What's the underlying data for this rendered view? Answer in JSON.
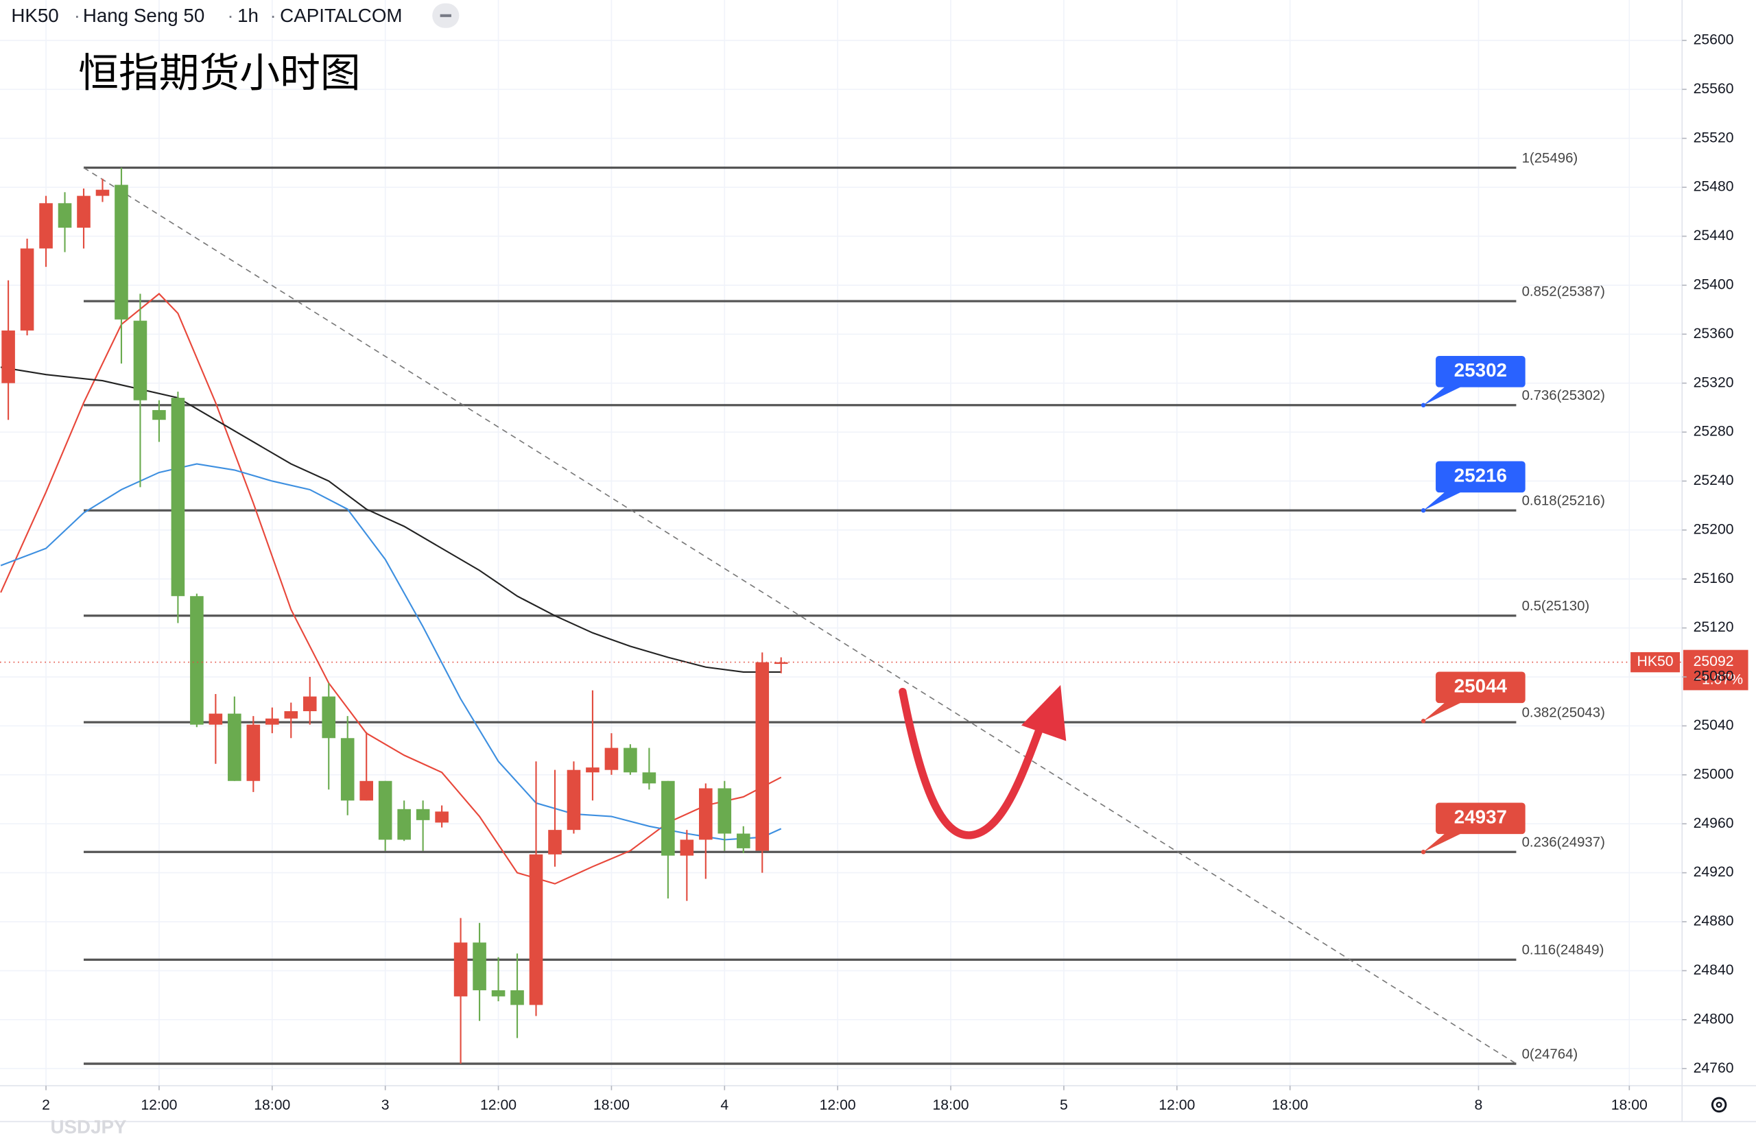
{
  "header": {
    "symbol": "HK50",
    "name": "Hang Seng 50",
    "interval": "1h",
    "source": "CAPITALCOM"
  },
  "watermark": "USDJPY",
  "chart_data": {
    "type": "candlestick",
    "title": "恒指期货小时图",
    "xlim": [
      -2.44,
      86.8
    ],
    "ylim": [
      24746,
      25633
    ],
    "grid": true,
    "xticks": [
      {
        "value": 0,
        "label": "2"
      },
      {
        "value": 6,
        "label": "12:00"
      },
      {
        "value": 12,
        "label": "18:00"
      },
      {
        "value": 18,
        "label": "3"
      },
      {
        "value": 24,
        "label": "12:00"
      },
      {
        "value": 30,
        "label": "18:00"
      },
      {
        "value": 36,
        "label": "4"
      },
      {
        "value": 42,
        "label": "12:00"
      },
      {
        "value": 48,
        "label": "18:00"
      },
      {
        "value": 54,
        "label": "5"
      },
      {
        "value": 60,
        "label": "12:00"
      },
      {
        "value": 66,
        "label": "18:00"
      },
      {
        "value": 76,
        "label": "8"
      },
      {
        "value": 84,
        "label": "18:00"
      }
    ],
    "yticks": [
      24760,
      24800,
      24840,
      24880,
      24920,
      24960,
      25000,
      25040,
      25080,
      25120,
      25160,
      25200,
      25240,
      25280,
      25320,
      25360,
      25400,
      25440,
      25480,
      25520,
      25560,
      25600
    ],
    "up_color": "#e24c3f",
    "down_color": "#6aab4f",
    "candles": {
      "x": [
        -2,
        -1,
        0,
        1,
        2,
        3,
        4,
        5,
        6,
        7,
        8,
        9,
        10,
        11,
        12,
        13,
        14,
        15,
        16,
        17,
        18,
        19,
        20,
        21,
        22,
        23,
        24,
        25,
        26,
        27,
        28,
        29,
        30,
        31,
        32,
        33,
        34,
        35,
        36,
        37,
        38,
        39
      ],
      "open": [
        25320,
        25363,
        25430,
        25467,
        25447,
        25473,
        25482,
        25371,
        25298,
        25308,
        25146,
        25041,
        25050,
        24995,
        25041,
        25046,
        25052,
        25064,
        25030,
        24979,
        24995,
        24972,
        24972,
        24961,
        24819,
        24863,
        24824,
        24824,
        24812,
        24935,
        24955,
        25002,
        25004,
        25022,
        25002,
        24995,
        24934,
        24947,
        24989,
        24952,
        24938,
        25092
      ],
      "high": [
        25404,
        25438,
        25473,
        25476,
        25479,
        25487,
        25496,
        25393,
        25306,
        25313,
        25148,
        25066,
        25064,
        25048,
        25055,
        25059,
        25080,
        25075,
        25048,
        25035,
        24995,
        24979,
        24979,
        24975,
        24883,
        24879,
        24851,
        24854,
        25011,
        25004,
        25011,
        25069,
        25034,
        25025,
        25022,
        24995,
        24955,
        24993,
        24995,
        24958,
        25100,
        25096
      ],
      "low": [
        25290,
        25359,
        25415,
        25427,
        25430,
        25468,
        25336,
        25235,
        25272,
        25124,
        25039,
        25009,
        24995,
        24986,
        25034,
        25030,
        25041,
        24988,
        24967,
        24979,
        24938,
        24946,
        24938,
        24957,
        24764,
        24799,
        24815,
        24785,
        24803,
        24925,
        24952,
        24979,
        25000,
        25000,
        24988,
        24899,
        24897,
        24915,
        24938,
        24936,
        24920,
        25083
      ],
      "close": [
        25363,
        25430,
        25467,
        25447,
        25473,
        25478,
        25372,
        25306,
        25290,
        25146,
        25041,
        25050,
        24995,
        25041,
        25046,
        25052,
        25064,
        25030,
        24979,
        24995,
        24947,
        24947,
        24963,
        24970,
        24863,
        24824,
        24819,
        24812,
        24935,
        24955,
        25004,
        25006,
        25022,
        25002,
        24993,
        24934,
        24947,
        24989,
        24952,
        24940,
        25092,
        25092
      ]
    },
    "lines": [
      {
        "color": "#e8473a",
        "x": [
          -2.4,
          0,
          2,
          4,
          6,
          7,
          9,
          11,
          13,
          15,
          17,
          19,
          21,
          23,
          25,
          27,
          29,
          31,
          33,
          35,
          37,
          39
        ],
        "values": [
          25149,
          25231,
          25304,
          25368,
          25393,
          25377,
          25304,
          25222,
          25135,
          25075,
          25034,
          25016,
          25002,
          24966,
          24920,
          24911,
          24925,
          24938,
          24961,
          24975,
          24982,
          24998
        ]
      },
      {
        "color": "#3d8fe0",
        "x": [
          -2.4,
          0,
          2,
          4,
          6,
          8,
          10,
          12,
          14,
          16,
          18,
          20,
          22,
          24,
          26,
          28,
          30,
          32,
          34,
          36,
          38,
          39
        ],
        "values": [
          25171,
          25185,
          25214,
          25233,
          25247,
          25254,
          25249,
          25240,
          25233,
          25217,
          25176,
          25121,
          25062,
          25011,
          24977,
          24968,
          24966,
          24958,
          24952,
          24947,
          24949,
          24956
        ]
      },
      {
        "color": "#222222",
        "x": [
          -2.4,
          0,
          3,
          5,
          7,
          9,
          11,
          13,
          15,
          17,
          19,
          21,
          23,
          25,
          27,
          29,
          31,
          33,
          35,
          37,
          39
        ],
        "values": [
          25333,
          25327,
          25322,
          25315,
          25308,
          25290,
          25272,
          25254,
          25240,
          25217,
          25203,
          25185,
          25167,
          25146,
          25130,
          25116,
          25105,
          25096,
          25088,
          25084,
          25084
        ]
      }
    ],
    "fib_x": [
      2,
      78
    ],
    "fib_levels": [
      {
        "value": 25496,
        "label": "1(25496)"
      },
      {
        "value": 25387,
        "label": "0.852(25387)"
      },
      {
        "value": 25302,
        "label": "0.736(25302)"
      },
      {
        "value": 25216,
        "label": "0.618(25216)"
      },
      {
        "value": 25130,
        "label": "0.5(25130)"
      },
      {
        "value": 25043,
        "label": "0.382(25043)"
      },
      {
        "value": 24937,
        "label": "0.236(24937)"
      },
      {
        "value": 24849,
        "label": "0.116(24849)"
      },
      {
        "value": 24764,
        "label": "0(24764)"
      }
    ],
    "trendline": {
      "x": [
        2,
        78
      ],
      "values": [
        25496,
        24764
      ]
    },
    "callouts": [
      {
        "value": 25302,
        "color": "#2962ff"
      },
      {
        "value": 25216,
        "color": "#2962ff"
      },
      {
        "value": 25044,
        "color": "#e24c3f"
      },
      {
        "value": 24937,
        "color": "#e24c3f"
      }
    ],
    "current": {
      "name": "HK50",
      "value": 25092,
      "change_label": "−1.07%",
      "color": "#e24c3f"
    }
  }
}
